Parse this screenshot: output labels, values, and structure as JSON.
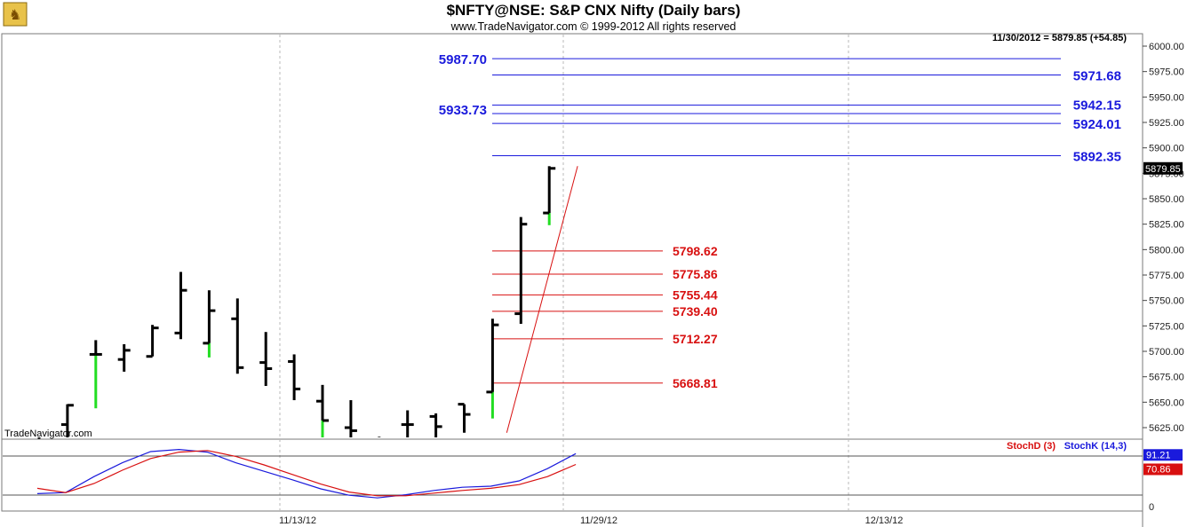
{
  "header": {
    "title": "$NFTY@NSE:  S&P CNX Nifty  (Daily bars)",
    "subtitle": "www.TradeNavigator.com © 1999-2012 All rights reserved",
    "last_info": "11/30/2012 = 5879.85 (+54.85)",
    "watermark": "TradeNavigator.com"
  },
  "colors": {
    "background": "#ffffff",
    "bar": "#000000",
    "bar_highlight": "#22dd22",
    "resistance": "#1a1adc",
    "support": "#d81010",
    "trendline": "#d81010",
    "grid": "#b8b8b8",
    "stochK": "#1a1adc",
    "stochD": "#d81010"
  },
  "chart_data": [
    {
      "type": "bar",
      "subtype": "ohlc",
      "ylim": [
        5610,
        6010
      ],
      "y_ticks": [
        6000,
        5975,
        5950,
        5925,
        5900,
        5875,
        5850,
        5825,
        5800,
        5775,
        5750,
        5725,
        5700,
        5675,
        5650,
        5625
      ],
      "y_tick_labels": [
        "6000.00",
        "5975.00",
        "5950.00",
        "5925.00",
        "5900.00",
        "5875.00",
        "5850.00",
        "5825.00",
        "5800.00",
        "5775.00",
        "5750.00",
        "5725.00",
        "5700.00",
        "5675.00",
        "5650.00",
        "5625.00"
      ],
      "x_tick_labels": [
        "11/13/12",
        "11/29/12",
        "12/13/12"
      ],
      "last_price": "5879.85",
      "bars": [
        {
          "open": 5613,
          "high": 5614,
          "low": 5608,
          "close": 5613
        },
        {
          "open": 5628,
          "high": 5648,
          "low": 5608,
          "close": 5647
        },
        {
          "open": 5697,
          "high": 5711,
          "low": 5644,
          "close": 5697
        },
        {
          "open": 5692,
          "high": 5707,
          "low": 5680,
          "close": 5701
        },
        {
          "open": 5695,
          "high": 5726,
          "low": 5695,
          "close": 5723
        },
        {
          "open": 5718,
          "high": 5778,
          "low": 5712,
          "close": 5760
        },
        {
          "open": 5708,
          "high": 5760,
          "low": 5694,
          "close": 5740
        },
        {
          "open": 5732,
          "high": 5752,
          "low": 5678,
          "close": 5684
        },
        {
          "open": 5689,
          "high": 5719,
          "low": 5666,
          "close": 5683
        },
        {
          "open": 5690,
          "high": 5697,
          "low": 5652,
          "close": 5663
        },
        {
          "open": 5651,
          "high": 5667,
          "low": 5610,
          "close": 5632
        },
        {
          "open": 5625,
          "high": 5652,
          "low": 5610,
          "close": 5622
        },
        {
          "open": 5610,
          "high": 5616,
          "low": 5608,
          "close": 5613
        },
        {
          "open": 5628,
          "high": 5642,
          "low": 5612,
          "close": 5628
        },
        {
          "open": 5636,
          "high": 5639,
          "low": 5612,
          "close": 5626
        },
        {
          "open": 5648,
          "high": 5648,
          "low": 5620,
          "close": 5638
        },
        {
          "open": 5660,
          "high": 5732,
          "low": 5634,
          "close": 5726
        },
        {
          "open": 5737,
          "high": 5832,
          "low": 5727,
          "close": 5825
        },
        {
          "open": 5836,
          "high": 5882,
          "low": 5824,
          "close": 5879.85
        }
      ],
      "resistance_levels": [
        "5987.70",
        "5971.68",
        "5942.15",
        "5933.73",
        "5924.01",
        "5892.35"
      ],
      "support_levels": [
        "5798.62",
        "5775.86",
        "5755.44",
        "5739.40",
        "5712.27",
        "5668.81"
      ],
      "trendline": [
        {
          "bar": 16.5,
          "value": 5620
        },
        {
          "bar": 19,
          "value": 5882
        }
      ]
    },
    {
      "type": "line",
      "title": "Stochastic",
      "ylim": [
        0,
        100
      ],
      "y_ticks": [
        0
      ],
      "current_values": {
        "stochK": "91.21",
        "stochD": "70.86"
      },
      "series": [
        {
          "name": "StochK (14,3)",
          "values": [
            16,
            18,
            48,
            74,
            95,
            99,
            94,
            74,
            58,
            42,
            25,
            13,
            8,
            14,
            22,
            28,
            30,
            40,
            63,
            91.2
          ]
        },
        {
          "name": "StochD (3)",
          "values": [
            26,
            18,
            35,
            60,
            82,
            94,
            97,
            86,
            70,
            52,
            34,
            19,
            12,
            12,
            17,
            22,
            26,
            33,
            48,
            70.9
          ]
        }
      ]
    }
  ]
}
